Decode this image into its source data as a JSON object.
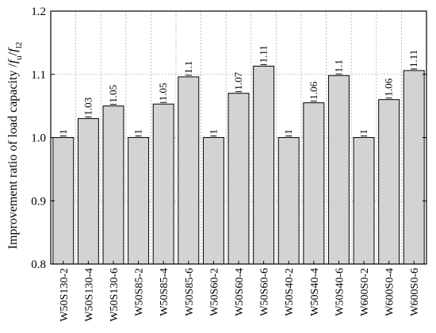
{
  "chart_data": {
    "type": "bar",
    "ylabel": "Improvement ratio of load capacity /",
    "ylabel_math": [
      {
        "text": "f",
        "sub": "u"
      },
      {
        "text": "/",
        "sub": ""
      },
      {
        "text": "f",
        "sub": "l2"
      }
    ],
    "ylim": [
      0.8,
      1.2
    ],
    "yticks": [
      0.8,
      0.9,
      1.0,
      1.1,
      1.2
    ],
    "ytick_labels": [
      "0.8",
      "0.9",
      "1.0",
      "1.1",
      "1.2"
    ],
    "grid": true,
    "categories": [
      "W50S130-2",
      "W50S130-4",
      "W50S130-6",
      "W50S85-2",
      "W50S85-4",
      "W50S85-6",
      "W50S60-2",
      "W50S60-4",
      "W50S60-6",
      "W50S40-2",
      "W50S40-4",
      "W50S40-6",
      "W600S0-2",
      "W600S0-4",
      "W600S0-6"
    ],
    "values": [
      1.0,
      1.03,
      1.05,
      1.0,
      1.053,
      1.096,
      1.0,
      1.07,
      1.113,
      1.0,
      1.055,
      1.098,
      1.0,
      1.06,
      1.106
    ],
    "labels": [
      "1",
      "1.03",
      "1.05",
      "1",
      "1.05",
      "1.1",
      "1",
      "1.07",
      "1.11",
      "1",
      "1.06",
      "1.1",
      "1",
      "1.06",
      "1.11"
    ]
  }
}
